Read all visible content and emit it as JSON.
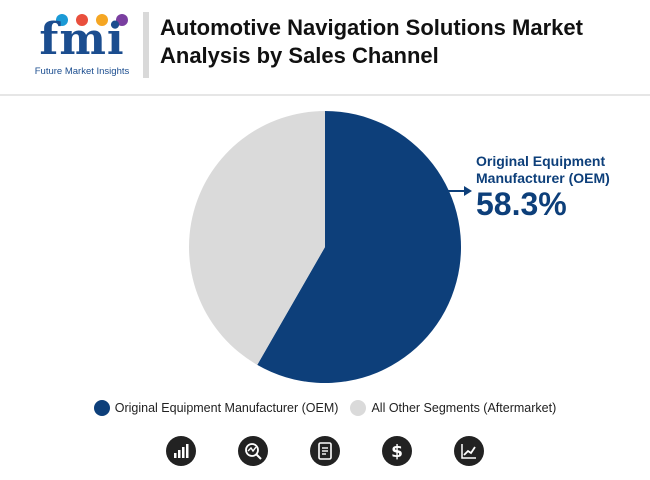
{
  "header": {
    "logo_text": "fmi",
    "logo_subtitle": "Future Market Insights",
    "title": "Automotive Navigation Solutions Market Analysis by Sales Channel"
  },
  "chart_data": {
    "type": "pie",
    "title": "Automotive Navigation Solutions Market Analysis by Sales Channel",
    "slices": [
      {
        "label": "Original Equipment Manufacturer (OEM)",
        "value": 58.3,
        "color": "#0d3f7a"
      },
      {
        "label": "All Other Segments (Aftermarket)",
        "value": 41.7,
        "color": "#dadada"
      }
    ],
    "start_angle_deg": 0,
    "direction": "clockwise",
    "callout": {
      "label": "Original Equipment Manufacturer (OEM)",
      "value_text": "58.3%"
    },
    "legend_position": "bottom"
  },
  "colors": {
    "brand": "#1b4d8f",
    "oem": "#0d3f7a",
    "other": "#dadada",
    "icon_bg": "#222222"
  },
  "footer_icons": [
    "bar-chart-icon",
    "magnifier-chart-icon",
    "document-icon",
    "dollar-icon",
    "line-chart-icon"
  ]
}
